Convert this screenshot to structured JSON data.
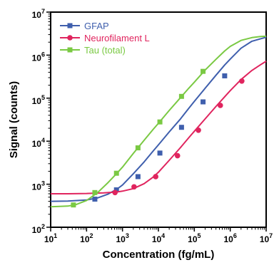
{
  "chart_data": {
    "type": "line",
    "xlabel": "Concentration (fg/mL)",
    "ylabel": "Signal (counts)",
    "x_scale": "log",
    "y_scale": "log",
    "xlim": [
      10,
      10000000
    ],
    "ylim": [
      100,
      10000000
    ],
    "x_ticks": [
      {
        "value": 10,
        "base": "10",
        "exp": "1"
      },
      {
        "value": 100,
        "base": "10",
        "exp": "2"
      },
      {
        "value": 1000,
        "base": "10",
        "exp": "3"
      },
      {
        "value": 10000,
        "base": "10",
        "exp": "4"
      },
      {
        "value": 100000,
        "base": "10",
        "exp": "5"
      },
      {
        "value": 1000000,
        "base": "10",
        "exp": "6"
      },
      {
        "value": 10000000,
        "base": "10",
        "exp": "7"
      }
    ],
    "y_ticks": [
      {
        "value": 100,
        "base": "10",
        "exp": "2"
      },
      {
        "value": 1000,
        "base": "10",
        "exp": "3"
      },
      {
        "value": 10000,
        "base": "10",
        "exp": "4"
      },
      {
        "value": 100000,
        "base": "10",
        "exp": "5"
      },
      {
        "value": 1000000,
        "base": "10",
        "exp": "6"
      },
      {
        "value": 10000000,
        "base": "10",
        "exp": "7"
      }
    ],
    "grid": false,
    "legend_position": "top-left",
    "series": [
      {
        "name": "GFAP",
        "color": "#3f5fad",
        "marker": "square",
        "x": [
          170,
          680,
          2700,
          11000,
          44000,
          175000,
          700000
        ],
        "y": [
          450,
          740,
          1500,
          5300,
          21000,
          82000,
          330000
        ],
        "curve_x": [
          10,
          30,
          100,
          200,
          400,
          700,
          1000,
          2000,
          4000,
          7000,
          10000,
          20000,
          40000,
          70000,
          100000,
          200000,
          400000,
          700000,
          1000000,
          2000000,
          4000000,
          7000000,
          10000000
        ],
        "curve_y": [
          400,
          405,
          430,
          480,
          590,
          770,
          960,
          1750,
          3300,
          5800,
          8200,
          16500,
          32000,
          58000,
          84000,
          170000,
          340000,
          590000,
          810000,
          1450000,
          2100000,
          2400000,
          2600000
        ]
      },
      {
        "name": "Neurofilament L",
        "color": "#e0245e",
        "marker": "circle",
        "x": [
          620,
          2100,
          8400,
          34000,
          130000,
          530000,
          2100000
        ],
        "y": [
          640,
          870,
          1500,
          4600,
          18000,
          68000,
          250000
        ],
        "curve_x": [
          10,
          30,
          100,
          300,
          700,
          1000,
          2000,
          4000,
          7000,
          10000,
          20000,
          40000,
          70000,
          100000,
          200000,
          400000,
          700000,
          1000000,
          2000000,
          4000000,
          7000000,
          10000000
        ],
        "curve_y": [
          600,
          600,
          610,
          630,
          660,
          690,
          790,
          1030,
          1450,
          1900,
          3600,
          6900,
          12000,
          17000,
          33000,
          64000,
          108000,
          150000,
          270000,
          440000,
          600000,
          720000
        ]
      },
      {
        "name": "Tau (total)",
        "color": "#7ac943",
        "marker": "square",
        "x": [
          43,
          170,
          680,
          2700,
          11000,
          44000,
          175000
        ],
        "y": [
          330,
          640,
          1800,
          7000,
          28000,
          110000,
          420000
        ],
        "curve_x": [
          10,
          30,
          50,
          100,
          200,
          400,
          700,
          1000,
          2000,
          4000,
          7000,
          10000,
          20000,
          40000,
          70000,
          100000,
          200000,
          400000,
          700000,
          1000000,
          2000000,
          4000000,
          7000000,
          10000000
        ],
        "curve_y": [
          300,
          310,
          335,
          420,
          630,
          1100,
          1800,
          2500,
          5200,
          10500,
          18500,
          26000,
          52000,
          100000,
          170000,
          235000,
          450000,
          800000,
          1250000,
          1600000,
          2200000,
          2550000,
          2700000,
          2750000
        ]
      }
    ]
  }
}
